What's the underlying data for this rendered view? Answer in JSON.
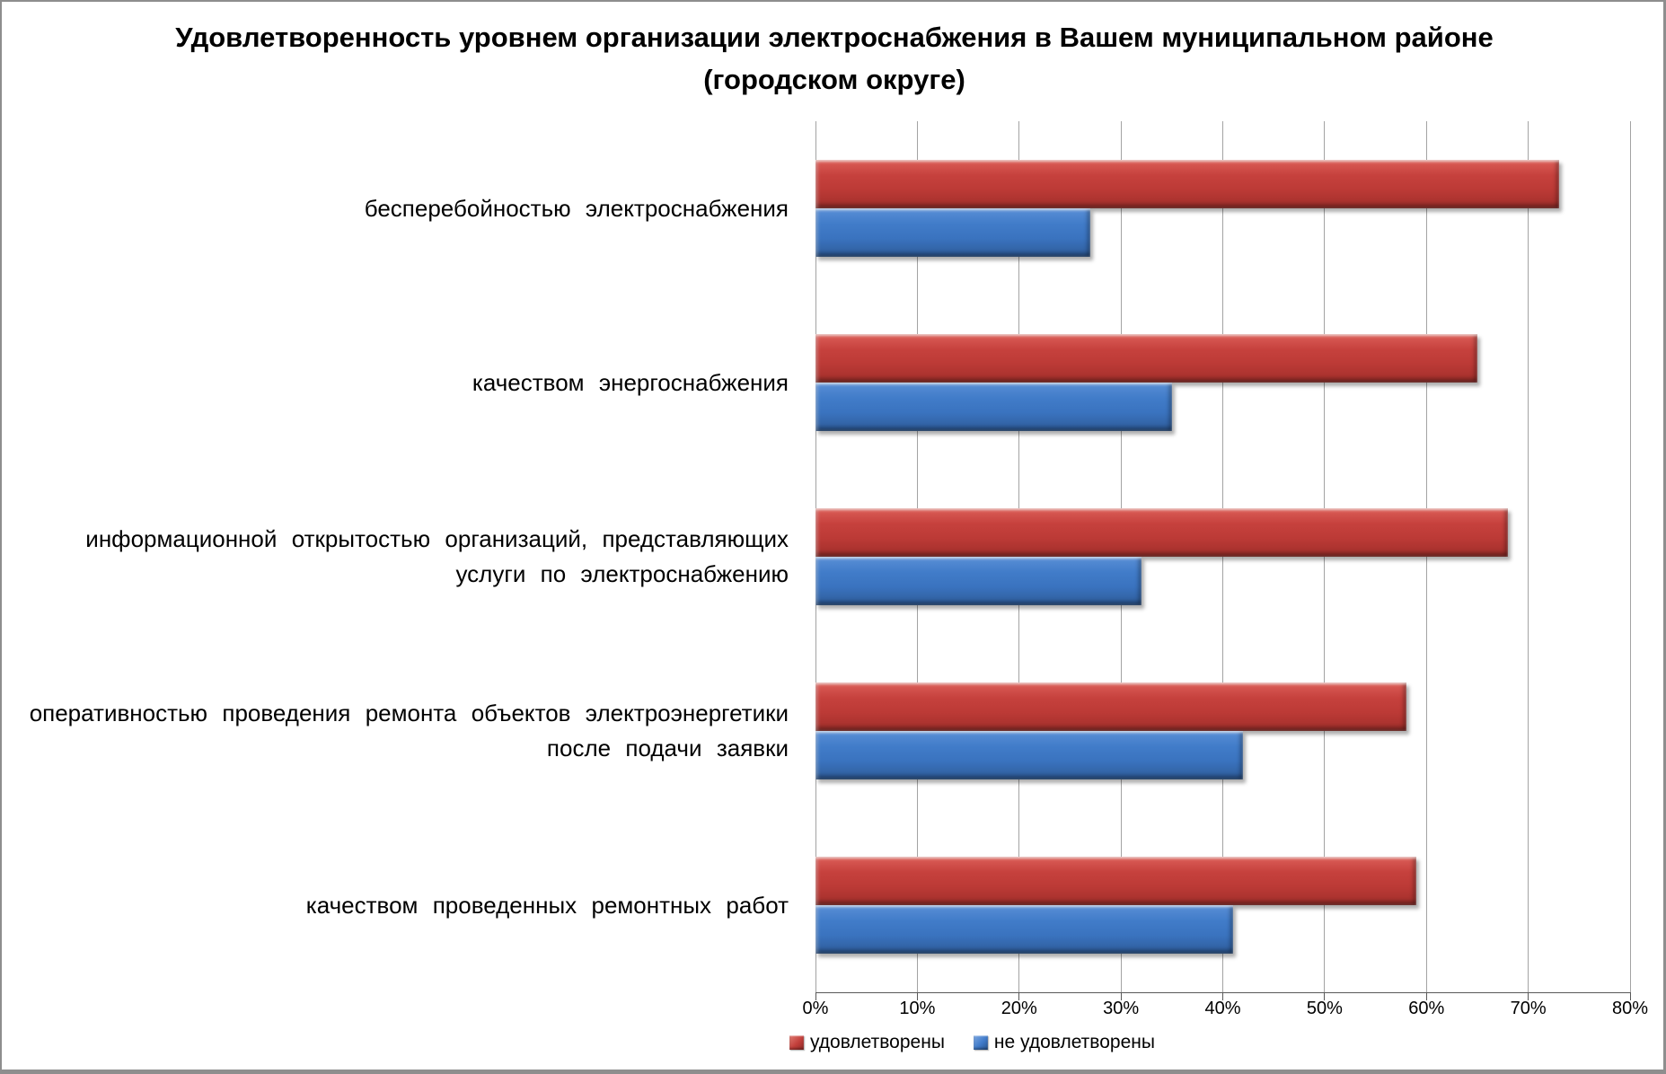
{
  "title": "Удовлетворенность уровнем организации электроснабжения в Вашем муниципальном районе (городском округе)",
  "colors": {
    "satisfied_bar": "#C13B37",
    "unsatisfied_bar": "#3B75C4",
    "gridline": "#A3A3A3",
    "axis": "#595959",
    "frame_border": "#8E8E8E",
    "background": "#FFFFFF"
  },
  "chart_data": {
    "type": "bar",
    "orientation": "horizontal",
    "title": "Удовлетворенность уровнем организации электроснабжения в Вашем муниципальном районе (городском округе)",
    "categories": [
      "бесперебойностью электроснабжения",
      "качеством энергоснабжения",
      "информационной открытостью организаций, представляющих услуги по электроснабжению",
      "оперативностью проведения ремонта объектов электроэнергетики после подачи заявки",
      "качеством проведенных ремонтных работ"
    ],
    "series": [
      {
        "name": "удовлетворены",
        "color": "#C13B37",
        "values": [
          73,
          65,
          68,
          58,
          59
        ]
      },
      {
        "name": "не удовлетворены",
        "color": "#3B75C4",
        "values": [
          27,
          35,
          32,
          42,
          41
        ]
      }
    ],
    "x_axis": {
      "min": 0,
      "max": 80,
      "tick_step": 10,
      "tick_labels": [
        "0%",
        "10%",
        "20%",
        "30%",
        "40%",
        "50%",
        "60%",
        "70%",
        "80%"
      ],
      "unit": "%"
    },
    "y_axis_label": "",
    "x_axis_label": "",
    "grid": true,
    "legend_position": "bottom"
  }
}
